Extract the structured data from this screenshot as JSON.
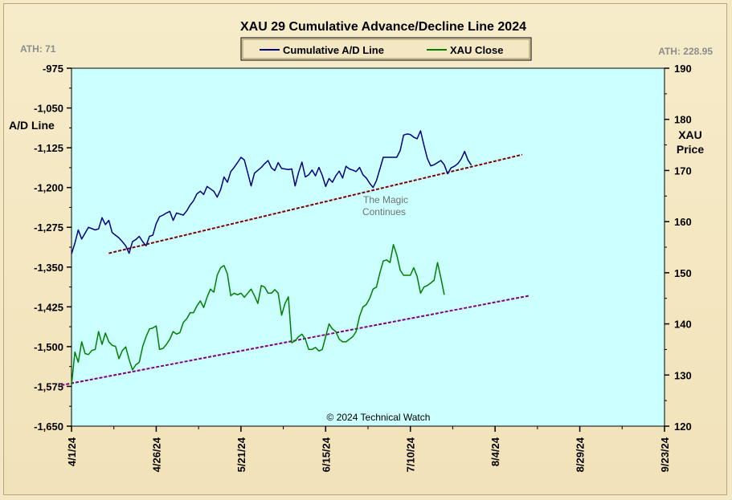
{
  "chart_data": {
    "type": "line",
    "title": "XAU 29 Cumulative  Advance/Decline  Line  2024",
    "ath_left": "ATH: 71",
    "ath_right": "ATH: 228.95",
    "ylabel_left": "A/D Line",
    "ylabel_right_line1": "XAU",
    "ylabel_right_line2": "Price",
    "copyright": "© 2024  Technical Watch",
    "annotation_line1": "The Magic",
    "annotation_line2": "Continues",
    "legend_position": "top-center",
    "grid": false,
    "plot_background": "#ccffff",
    "x_ticks": [
      "4/1/24",
      "4/26/24",
      "5/21/24",
      "6/15/24",
      "7/10/24",
      "8/4/24",
      "8/29/24",
      "9/23/24"
    ],
    "x_tick_days": [
      0,
      25,
      50,
      75,
      100,
      125,
      150,
      175
    ],
    "xlim_days": [
      0,
      175
    ],
    "ylim_left": [
      -1650,
      -975
    ],
    "yticks_left": [
      "-975",
      "-1,050",
      "-1,125",
      "-1,200",
      "-1,275",
      "-1,350",
      "-1,425",
      "-1,500",
      "-1,575",
      "-1,650"
    ],
    "ylim_right": [
      120,
      190
    ],
    "yticks_right": [
      "190",
      "180",
      "170",
      "160",
      "150",
      "140",
      "130",
      "120"
    ],
    "series": [
      {
        "name": "Cumulative A/D Line",
        "color": "#000080",
        "axis": "left",
        "points": [
          [
            0,
            -1325
          ],
          [
            1,
            -1305
          ],
          [
            2,
            -1280
          ],
          [
            3,
            -1297
          ],
          [
            5,
            -1275
          ],
          [
            7,
            -1280
          ],
          [
            8,
            -1278
          ],
          [
            9,
            -1257
          ],
          [
            10,
            -1270
          ],
          [
            11,
            -1262
          ],
          [
            12,
            -1285
          ],
          [
            14,
            -1295
          ],
          [
            15,
            -1302
          ],
          [
            16,
            -1310
          ],
          [
            17,
            -1324
          ],
          [
            18,
            -1302
          ],
          [
            19,
            -1298
          ],
          [
            20,
            -1292
          ],
          [
            21,
            -1302
          ],
          [
            22,
            -1310
          ],
          [
            23,
            -1292
          ],
          [
            24,
            -1290
          ],
          [
            25,
            -1268
          ],
          [
            26,
            -1255
          ],
          [
            27,
            -1252
          ],
          [
            28,
            -1248
          ],
          [
            29,
            -1245
          ],
          [
            30,
            -1262
          ],
          [
            31,
            -1248
          ],
          [
            32,
            -1250
          ],
          [
            33,
            -1252
          ],
          [
            34,
            -1244
          ],
          [
            35,
            -1233
          ],
          [
            36,
            -1225
          ],
          [
            37,
            -1212
          ],
          [
            38,
            -1207
          ],
          [
            39,
            -1213
          ],
          [
            40,
            -1198
          ],
          [
            42,
            -1207
          ],
          [
            43,
            -1218
          ],
          [
            44,
            -1204
          ],
          [
            45,
            -1180
          ],
          [
            46,
            -1190
          ],
          [
            47,
            -1170
          ],
          [
            48,
            -1162
          ],
          [
            49,
            -1153
          ],
          [
            50,
            -1143
          ],
          [
            51,
            -1148
          ],
          [
            52,
            -1172
          ],
          [
            53,
            -1197
          ],
          [
            54,
            -1173
          ],
          [
            56,
            -1162
          ],
          [
            57,
            -1155
          ],
          [
            58,
            -1149
          ],
          [
            59,
            -1163
          ],
          [
            60,
            -1168
          ],
          [
            61,
            -1153
          ],
          [
            62,
            -1164
          ],
          [
            64,
            -1166
          ],
          [
            65,
            -1165
          ],
          [
            66,
            -1197
          ],
          [
            67,
            -1172
          ],
          [
            68,
            -1152
          ],
          [
            69,
            -1180
          ],
          [
            70,
            -1176
          ],
          [
            71,
            -1167
          ],
          [
            72,
            -1178
          ],
          [
            73,
            -1162
          ],
          [
            74,
            -1177
          ],
          [
            75,
            -1198
          ],
          [
            76,
            -1183
          ],
          [
            77,
            -1190
          ],
          [
            78,
            -1178
          ],
          [
            79,
            -1169
          ],
          [
            80,
            -1182
          ],
          [
            81,
            -1160
          ],
          [
            82,
            -1165
          ],
          [
            83,
            -1167
          ],
          [
            84,
            -1170
          ],
          [
            85,
            -1162
          ],
          [
            86,
            -1176
          ],
          [
            87,
            -1182
          ],
          [
            88,
            -1192
          ],
          [
            89,
            -1200
          ],
          [
            90,
            -1187
          ],
          [
            91,
            -1165
          ],
          [
            92,
            -1143
          ],
          [
            94,
            -1143
          ],
          [
            95,
            -1143
          ],
          [
            96,
            -1143
          ],
          [
            97,
            -1130
          ],
          [
            98,
            -1101
          ],
          [
            99,
            -1099
          ],
          [
            100,
            -1100
          ],
          [
            101,
            -1105
          ],
          [
            102,
            -1108
          ],
          [
            103,
            -1093
          ],
          [
            104,
            -1120
          ],
          [
            105,
            -1145
          ],
          [
            106,
            -1159
          ],
          [
            107,
            -1157
          ],
          [
            108,
            -1153
          ],
          [
            109,
            -1149
          ],
          [
            110,
            -1157
          ],
          [
            111,
            -1174
          ],
          [
            112,
            -1163
          ],
          [
            113,
            -1160
          ],
          [
            114,
            -1155
          ],
          [
            115,
            -1146
          ],
          [
            116,
            -1132
          ],
          [
            117,
            -1148
          ],
          [
            118,
            -1158
          ]
        ]
      },
      {
        "name": "XAU Close",
        "color": "#008000",
        "axis": "right",
        "points": [
          [
            0,
            128.0
          ],
          [
            1,
            134.5
          ],
          [
            2,
            132.5
          ],
          [
            3,
            136.5
          ],
          [
            4,
            134.2
          ],
          [
            5,
            134.0
          ],
          [
            6,
            134.8
          ],
          [
            7,
            135.0
          ],
          [
            8,
            138.5
          ],
          [
            9,
            136.0
          ],
          [
            10,
            138.2
          ],
          [
            11,
            136.5
          ],
          [
            12,
            135.8
          ],
          [
            13,
            135.6
          ],
          [
            14,
            133.2
          ],
          [
            15,
            134.8
          ],
          [
            16,
            135.5
          ],
          [
            17,
            133.0
          ],
          [
            18,
            131.0
          ],
          [
            19,
            132.0
          ],
          [
            20,
            132.5
          ],
          [
            21,
            135.6
          ],
          [
            22,
            137.5
          ],
          [
            23,
            139.0
          ],
          [
            24,
            139.2
          ],
          [
            25,
            139.6
          ],
          [
            26,
            135.0
          ],
          [
            27,
            135.2
          ],
          [
            28,
            136.0
          ],
          [
            29,
            137.0
          ],
          [
            30,
            138.5
          ],
          [
            31,
            138.0
          ],
          [
            32,
            138.3
          ],
          [
            33,
            140.3
          ],
          [
            34,
            141.0
          ],
          [
            35,
            142.2
          ],
          [
            36,
            142.2
          ],
          [
            37,
            143.5
          ],
          [
            38,
            144.5
          ],
          [
            39,
            143.2
          ],
          [
            40,
            145.2
          ],
          [
            41,
            146.8
          ],
          [
            42,
            146.2
          ],
          [
            43,
            149.5
          ],
          [
            44,
            151.0
          ],
          [
            45,
            151.4
          ],
          [
            46,
            149.8
          ],
          [
            47,
            145.5
          ],
          [
            48,
            146.0
          ],
          [
            49,
            145.7
          ],
          [
            50,
            146.0
          ],
          [
            51,
            145.2
          ],
          [
            52,
            146.0
          ],
          [
            53,
            146.8
          ],
          [
            54,
            145.5
          ],
          [
            55,
            144.0
          ],
          [
            56,
            147.5
          ],
          [
            57,
            147.2
          ],
          [
            58,
            146.0
          ],
          [
            59,
            146.0
          ],
          [
            60,
            146.7
          ],
          [
            61,
            146.0
          ],
          [
            62,
            141.7
          ],
          [
            63,
            144.0
          ],
          [
            64,
            145.3
          ],
          [
            65,
            136.3
          ],
          [
            66,
            136.7
          ],
          [
            67,
            137.5
          ],
          [
            68,
            138.0
          ],
          [
            69,
            137.0
          ],
          [
            70,
            135.0
          ],
          [
            71,
            135.0
          ],
          [
            72,
            135.4
          ],
          [
            73,
            134.7
          ],
          [
            74,
            135.0
          ],
          [
            75,
            137.5
          ],
          [
            76,
            140.0
          ],
          [
            77,
            139.0
          ],
          [
            78,
            138.5
          ],
          [
            79,
            137.0
          ],
          [
            80,
            136.5
          ],
          [
            81,
            136.5
          ],
          [
            82,
            137.0
          ],
          [
            83,
            137.5
          ],
          [
            84,
            138.5
          ],
          [
            85,
            141.5
          ],
          [
            86,
            143.3
          ],
          [
            87,
            143.8
          ],
          [
            88,
            145.0
          ],
          [
            89,
            146.8
          ],
          [
            90,
            147.2
          ],
          [
            91,
            150.0
          ],
          [
            92,
            152.3
          ],
          [
            93,
            152.5
          ],
          [
            94,
            152.0
          ],
          [
            95,
            155.5
          ],
          [
            96,
            153.5
          ],
          [
            97,
            150.5
          ],
          [
            98,
            149.5
          ],
          [
            99,
            149.5
          ],
          [
            100,
            149.5
          ],
          [
            101,
            151.0
          ],
          [
            102,
            149.3
          ],
          [
            103,
            146.0
          ],
          [
            104,
            147.2
          ],
          [
            105,
            147.5
          ],
          [
            106,
            148.0
          ],
          [
            107,
            148.5
          ],
          [
            108,
            152.0
          ],
          [
            109,
            149.0
          ],
          [
            110,
            145.7
          ]
        ]
      }
    ],
    "trendlines": [
      {
        "axis": "left",
        "color": "#800000",
        "from": [
          11,
          -1324
        ],
        "to": [
          133,
          -1138
        ]
      },
      {
        "axis": "right",
        "color": "#800080",
        "from": [
          -3,
          128.0
        ],
        "to": [
          135,
          145.5
        ]
      }
    ]
  }
}
